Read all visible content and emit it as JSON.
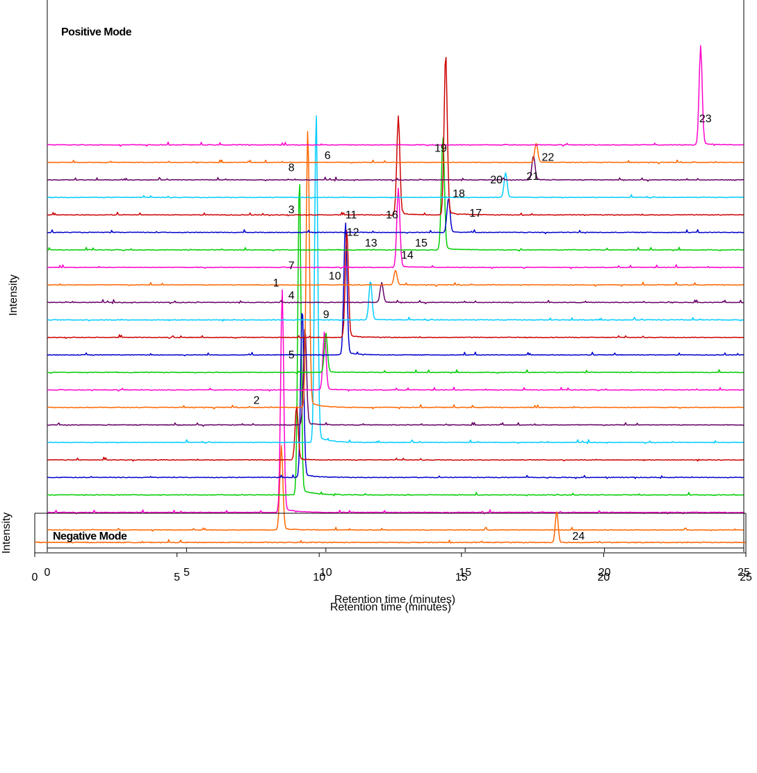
{
  "chart_data": [
    {
      "type": "line",
      "title": "Positive Mode",
      "xlabel": "Retention time (minutes)",
      "ylabel": "Intensity",
      "xlim": [
        0,
        25
      ],
      "xticks": [
        0,
        5,
        10,
        15,
        20,
        25
      ],
      "grid": false,
      "legend": "none",
      "series": [
        {
          "color": "#FF6600",
          "peaks": [
            {
              "label": "2",
              "x": 8.4,
              "height": 0.17
            }
          ]
        },
        {
          "color": "#FF00CC",
          "peaks": [
            {
              "label": "1",
              "x": 8.43,
              "height": 0.45
            }
          ]
        },
        {
          "color": "#00CC00",
          "peaks": [
            {
              "label": "3",
              "x": 9.05,
              "height": 0.65
            }
          ]
        },
        {
          "color": "#0000CC",
          "peaks": [
            {
              "label": "4",
              "x": 9.15,
              "height": 0.35
            }
          ]
        },
        {
          "color": "#CC0000",
          "peaks": [
            {
              "label": "5",
              "x": 8.95,
              "height": 0.11
            }
          ]
        },
        {
          "color": "#00CCFF",
          "peaks": [
            {
              "label": "6",
              "x": 9.65,
              "height": 0.67
            }
          ]
        },
        {
          "color": "#660066",
          "peaks": [
            {
              "label": "7",
              "x": 9.25,
              "height": 0.2
            }
          ]
        },
        {
          "color": "#FF6600",
          "peaks": [
            {
              "label": "8",
              "x": 9.35,
              "height": 0.57
            }
          ]
        },
        {
          "color": "#FF00CC",
          "peaks": [
            {
              "label": "9",
              "x": 9.95,
              "height": 0.12
            }
          ]
        },
        {
          "color": "#00CC00",
          "peaks": [
            {
              "label": "10",
              "x": 10.0,
              "height": 0.08
            }
          ]
        },
        {
          "color": "#0000CC",
          "peaks": [
            {
              "label": "11",
              "x": 10.7,
              "height": 0.27
            }
          ]
        },
        {
          "color": "#CC0000",
          "peaks": [
            {
              "label": "12",
              "x": 10.75,
              "height": 0.22
            }
          ]
        },
        {
          "color": "#00CCFF",
          "peaks": [
            {
              "label": "13",
              "x": 11.6,
              "height": 0.08
            }
          ]
        },
        {
          "color": "#660066",
          "peaks": [
            {
              "label": "14",
              "x": 12.0,
              "height": 0.04
            }
          ]
        },
        {
          "color": "#FF6600",
          "peaks": [
            {
              "label": "15",
              "x": 12.5,
              "height": 0.03
            }
          ]
        },
        {
          "color": "#FF00CC",
          "peaks": [
            {
              "label": "16",
              "x": 12.6,
              "height": 0.16
            }
          ]
        },
        {
          "color": "#00CC00",
          "peaks": [
            {
              "label": "17",
              "x": 14.2,
              "height": 0.23
            }
          ]
        },
        {
          "color": "#0000CC",
          "peaks": [
            {
              "label": "18",
              "x": 14.4,
              "height": 0.07
            }
          ]
        },
        {
          "color": "#CC0000",
          "peaks": [
            {
              "label": "19",
              "x": 12.6,
              "height": 0.2
            },
            {
              "label": "19",
              "x": 14.3,
              "height": 0.33
            }
          ]
        },
        {
          "color": "#00CCFF",
          "peaks": [
            {
              "label": "20",
              "x": 16.45,
              "height": 0.05
            }
          ]
        },
        {
          "color": "#660066",
          "peaks": [
            {
              "label": "21",
              "x": 17.45,
              "height": 0.05
            }
          ]
        },
        {
          "color": "#FF6600",
          "peaks": [
            {
              "label": "22",
              "x": 17.55,
              "height": 0.04
            }
          ]
        },
        {
          "color": "#FF00CC",
          "peaks": [
            {
              "label": "23",
              "x": 23.45,
              "height": 0.2
            }
          ]
        }
      ]
    },
    {
      "type": "line",
      "title": "Negative Mode",
      "xlabel": "Retention time (minutes)",
      "ylabel": "Intensity",
      "xlim": [
        0,
        25
      ],
      "xticks": [
        0,
        5,
        10,
        15,
        20,
        25
      ],
      "grid": false,
      "legend": "none",
      "series": [
        {
          "color": "#FF6600",
          "peaks": [
            {
              "label": "24",
              "x": 18.35,
              "height": 0.9
            }
          ]
        }
      ]
    }
  ],
  "peak_labels_top": [
    {
      "text": "23",
      "x": 23.4,
      "trace": 24.3
    },
    {
      "text": "19",
      "x": 13.9,
      "trace": 22.6
    },
    {
      "text": "22",
      "x": 17.75,
      "trace": 22.1
    },
    {
      "text": "6",
      "x": 9.95,
      "trace": 22.2
    },
    {
      "text": "8",
      "x": 8.65,
      "trace": 21.5
    },
    {
      "text": "21",
      "x": 17.2,
      "trace": 21.0
    },
    {
      "text": "20",
      "x": 15.9,
      "trace": 20.8
    },
    {
      "text": "3",
      "x": 8.65,
      "trace": 19.1
    },
    {
      "text": "18",
      "x": 14.55,
      "trace": 20.0
    },
    {
      "text": "17",
      "x": 15.15,
      "trace": 18.9
    },
    {
      "text": "11",
      "x": 10.7,
      "trace": 18.8
    },
    {
      "text": "16",
      "x": 12.15,
      "trace": 18.8
    },
    {
      "text": "12",
      "x": 10.75,
      "trace": 17.8
    },
    {
      "text": "13",
      "x": 11.4,
      "trace": 17.2
    },
    {
      "text": "15",
      "x": 13.2,
      "trace": 17.2
    },
    {
      "text": "14",
      "x": 12.7,
      "trace": 16.5
    },
    {
      "text": "7",
      "x": 8.65,
      "trace": 15.9
    },
    {
      "text": "1",
      "x": 8.1,
      "trace": 14.9
    },
    {
      "text": "10",
      "x": 10.1,
      "trace": 15.3
    },
    {
      "text": "4",
      "x": 8.65,
      "trace": 14.2
    },
    {
      "text": "9",
      "x": 9.9,
      "trace": 13.1
    },
    {
      "text": "5",
      "x": 8.65,
      "trace": 10.8
    },
    {
      "text": "2",
      "x": 7.4,
      "trace": 8.2
    }
  ],
  "peak_labels_bottom": [
    {
      "text": "24",
      "x": 18.9,
      "frac": 0.3
    }
  ],
  "colors": {
    "orange": "#FF6600",
    "magenta": "#FF00CC",
    "green": "#00CC00",
    "blue": "#0000CC",
    "red": "#CC0000",
    "cyan": "#00CCFF",
    "purple": "#660066"
  }
}
